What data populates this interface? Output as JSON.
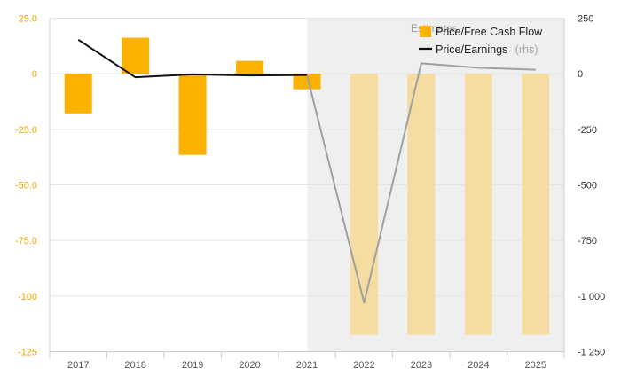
{
  "chart_data": {
    "type": "bar+line",
    "categories": [
      "2017",
      "2018",
      "2019",
      "2020",
      "2021",
      "2022",
      "2023",
      "2024",
      "2025"
    ],
    "estimate_start_index": 5,
    "estimates_label": "Estimates",
    "series": [
      {
        "name": "Price/Free Cash Flow",
        "type": "bar",
        "axis": "left",
        "values": [
          -17.8,
          16.2,
          -36.5,
          5.8,
          -7.0,
          -117.5,
          -117.5,
          -117.5,
          -117.5
        ],
        "color": "#fbb100",
        "estimate_color": "#f5dca0"
      },
      {
        "name": "Price/Earnings",
        "name_suffix": "(rhs)",
        "type": "line",
        "axis": "right",
        "values": [
          153,
          -16,
          -3,
          -8,
          -6,
          -1030,
          47,
          27,
          18
        ],
        "color": "#111111",
        "estimate_color": "#a0a0a0"
      }
    ],
    "y_left": {
      "min": -125,
      "max": 25,
      "ticks": [
        25,
        0,
        -25,
        -50,
        -75,
        -100,
        -125
      ],
      "tick_labels": [
        "25.0",
        "0",
        "-25.0",
        "-50.0",
        "-75.0",
        "-100",
        "-125"
      ]
    },
    "y_right": {
      "min": -1250,
      "max": 250,
      "ticks": [
        250,
        0,
        -250,
        -500,
        -750,
        -1000,
        -1250
      ],
      "tick_labels": [
        "250",
        "0",
        "-250",
        "-500",
        "-750",
        "-1 000",
        "-1 250"
      ]
    },
    "grid": true,
    "legend_position": "top-right"
  }
}
